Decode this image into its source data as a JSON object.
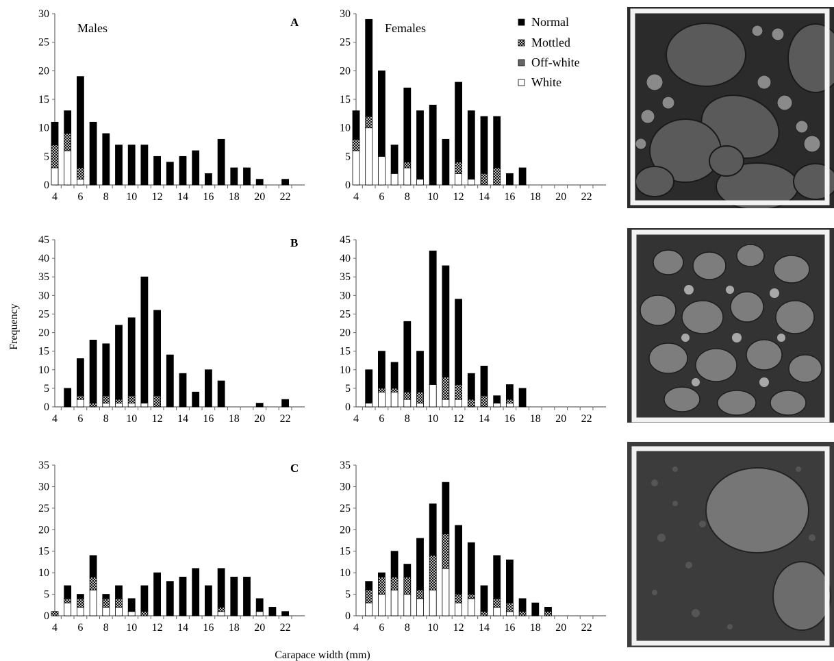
{
  "figure": {
    "ylabel": "Frequency",
    "xlabel": "Carapace width (mm)"
  },
  "legend": [
    {
      "key": "normal",
      "label": "Normal",
      "fill": "#000000"
    },
    {
      "key": "mottled",
      "label": "Mottled",
      "fill": "pattern-mottled"
    },
    {
      "key": "offwhite",
      "label": "Off-white",
      "fill": "#666666"
    },
    {
      "key": "white",
      "label": "White",
      "fill": "#ffffff"
    }
  ],
  "colors": {
    "normal": "#000000",
    "offwhite": "#666666",
    "white": "#ffffff",
    "axis": "#666666"
  },
  "chart_data": [
    {
      "type": "bar",
      "stacked": true,
      "row": "A",
      "column": "Males",
      "panel_letter": "A",
      "panel_label": "Males",
      "x": [
        4,
        5,
        6,
        7,
        8,
        9,
        10,
        11,
        12,
        13,
        14,
        15,
        16,
        17,
        18,
        19,
        20,
        21,
        22
      ],
      "xticks": [
        4,
        6,
        8,
        10,
        12,
        14,
        16,
        18,
        20,
        22
      ],
      "ylim": [
        0,
        30
      ],
      "yticks": [
        0,
        5,
        10,
        15,
        20,
        25,
        30
      ],
      "series": [
        {
          "name": "White",
          "values": [
            3,
            6,
            1,
            0,
            0,
            0,
            0,
            0,
            0,
            0,
            0,
            0,
            0,
            0,
            0,
            0,
            0,
            0,
            0
          ]
        },
        {
          "name": "Off-white",
          "values": [
            0,
            0,
            0,
            0,
            0,
            0,
            0,
            0,
            0,
            0,
            0,
            0,
            0,
            0,
            0,
            0,
            0,
            0,
            0
          ]
        },
        {
          "name": "Mottled",
          "values": [
            4,
            3,
            2,
            0,
            0,
            0,
            0,
            0,
            0,
            0,
            0,
            0,
            0,
            0,
            0,
            0,
            0,
            0,
            0
          ]
        },
        {
          "name": "Normal",
          "values": [
            4,
            4,
            16,
            11,
            9,
            7,
            7,
            7,
            5,
            4,
            5,
            6,
            2,
            8,
            3,
            3,
            1,
            0,
            1
          ]
        }
      ]
    },
    {
      "type": "bar",
      "stacked": true,
      "row": "A",
      "column": "Females",
      "panel_label": "Females",
      "x": [
        4,
        5,
        6,
        7,
        8,
        9,
        10,
        11,
        12,
        13,
        14,
        15,
        16,
        17,
        18,
        19,
        20,
        21,
        22
      ],
      "xticks": [
        4,
        6,
        8,
        10,
        12,
        14,
        16,
        18,
        20,
        22
      ],
      "ylim": [
        0,
        30
      ],
      "yticks": [
        0,
        5,
        10,
        15,
        20,
        25,
        30
      ],
      "series": [
        {
          "name": "White",
          "values": [
            6,
            10,
            5,
            2,
            3,
            1,
            0,
            0,
            2,
            1,
            0,
            0,
            0,
            0,
            0,
            0,
            0,
            0,
            0
          ]
        },
        {
          "name": "Off-white",
          "values": [
            0,
            0,
            0,
            0,
            0,
            0,
            0,
            0,
            0,
            0,
            0,
            0,
            0,
            0,
            0,
            0,
            0,
            0,
            0
          ]
        },
        {
          "name": "Mottled",
          "values": [
            2,
            2,
            0,
            0,
            1,
            0,
            0,
            0,
            2,
            0,
            2,
            3,
            0,
            0,
            0,
            0,
            0,
            0,
            0
          ]
        },
        {
          "name": "Normal",
          "values": [
            5,
            17,
            15,
            5,
            13,
            12,
            14,
            8,
            14,
            12,
            10,
            9,
            2,
            3,
            0,
            0,
            0,
            0,
            0
          ]
        }
      ]
    },
    {
      "type": "bar",
      "stacked": true,
      "row": "B",
      "column": "Males",
      "panel_letter": "B",
      "x": [
        4,
        5,
        6,
        7,
        8,
        9,
        10,
        11,
        12,
        13,
        14,
        15,
        16,
        17,
        18,
        19,
        20,
        21,
        22
      ],
      "xticks": [
        4,
        6,
        8,
        10,
        12,
        14,
        16,
        18,
        20,
        22
      ],
      "ylim": [
        0,
        45
      ],
      "yticks": [
        0,
        5,
        10,
        15,
        20,
        25,
        30,
        35,
        40,
        45
      ],
      "series": [
        {
          "name": "White",
          "values": [
            0,
            0,
            2,
            0,
            1,
            1,
            1,
            1,
            0,
            0,
            0,
            0,
            0,
            0,
            0,
            0,
            0,
            0,
            0
          ]
        },
        {
          "name": "Off-white",
          "values": [
            0,
            0,
            0,
            0,
            0,
            0,
            0,
            0,
            0,
            0,
            0,
            0,
            0,
            0,
            0,
            0,
            0,
            0,
            0
          ]
        },
        {
          "name": "Mottled",
          "values": [
            0,
            0,
            1,
            1,
            2,
            1,
            2,
            0,
            3,
            0,
            0,
            0,
            0,
            0,
            0,
            0,
            0,
            0,
            0
          ]
        },
        {
          "name": "Normal",
          "values": [
            0,
            5,
            10,
            17,
            14,
            20,
            21,
            34,
            23,
            14,
            9,
            4,
            10,
            7,
            0,
            0,
            1,
            0,
            2
          ]
        }
      ]
    },
    {
      "type": "bar",
      "stacked": true,
      "row": "B",
      "column": "Females",
      "x": [
        4,
        5,
        6,
        7,
        8,
        9,
        10,
        11,
        12,
        13,
        14,
        15,
        16,
        17,
        18,
        19,
        20,
        21,
        22
      ],
      "xticks": [
        4,
        6,
        8,
        10,
        12,
        14,
        16,
        18,
        20,
        22
      ],
      "ylim": [
        0,
        45
      ],
      "yticks": [
        0,
        5,
        10,
        15,
        20,
        25,
        30,
        35,
        40,
        45
      ],
      "series": [
        {
          "name": "White",
          "values": [
            0,
            1,
            4,
            4,
            2,
            1,
            6,
            2,
            2,
            0,
            0,
            1,
            1,
            0,
            0,
            0,
            0,
            0,
            0
          ]
        },
        {
          "name": "Off-white",
          "values": [
            0,
            0,
            0,
            0,
            0,
            0,
            0,
            0,
            0,
            0,
            0,
            0,
            0,
            0,
            0,
            0,
            0,
            0,
            0
          ]
        },
        {
          "name": "Mottled",
          "values": [
            0,
            0,
            1,
            1,
            2,
            3,
            0,
            6,
            4,
            2,
            3,
            0,
            1,
            0,
            0,
            0,
            0,
            0,
            0
          ]
        },
        {
          "name": "Normal",
          "values": [
            0,
            9,
            10,
            7,
            19,
            11,
            36,
            30,
            23,
            7,
            8,
            2,
            4,
            5,
            0,
            0,
            0,
            0,
            0
          ]
        }
      ]
    },
    {
      "type": "bar",
      "stacked": true,
      "row": "C",
      "column": "Males",
      "panel_letter": "C",
      "x": [
        4,
        5,
        6,
        7,
        8,
        9,
        10,
        11,
        12,
        13,
        14,
        15,
        16,
        17,
        18,
        19,
        20,
        21,
        22
      ],
      "xticks": [
        4,
        6,
        8,
        10,
        12,
        14,
        16,
        18,
        20,
        22
      ],
      "ylim": [
        0,
        35
      ],
      "yticks": [
        0,
        5,
        10,
        15,
        20,
        25,
        30,
        35
      ],
      "series": [
        {
          "name": "White",
          "values": [
            0,
            3,
            2,
            6,
            2,
            2,
            1,
            0,
            0,
            0,
            0,
            0,
            0,
            1,
            0,
            0,
            1,
            0,
            0
          ]
        },
        {
          "name": "Off-white",
          "values": [
            0,
            0,
            0,
            0,
            0,
            0,
            0,
            0,
            0,
            0,
            0,
            0,
            0,
            0,
            0,
            0,
            0,
            0,
            0
          ]
        },
        {
          "name": "Mottled",
          "values": [
            1,
            1,
            2,
            3,
            2,
            2,
            0,
            1,
            0,
            0,
            0,
            0,
            0,
            1,
            0,
            0,
            0,
            0,
            0
          ]
        },
        {
          "name": "Normal",
          "values": [
            0,
            3,
            1,
            5,
            1,
            3,
            3,
            6,
            10,
            8,
            9,
            11,
            7,
            9,
            9,
            9,
            3,
            2,
            1
          ]
        }
      ]
    },
    {
      "type": "bar",
      "stacked": true,
      "row": "C",
      "column": "Females",
      "x": [
        4,
        5,
        6,
        7,
        8,
        9,
        10,
        11,
        12,
        13,
        14,
        15,
        16,
        17,
        18,
        19,
        20,
        21,
        22
      ],
      "xticks": [
        4,
        6,
        8,
        10,
        12,
        14,
        16,
        18,
        20,
        22
      ],
      "ylim": [
        0,
        35
      ],
      "yticks": [
        0,
        5,
        10,
        15,
        20,
        25,
        30,
        35
      ],
      "series": [
        {
          "name": "White",
          "values": [
            0,
            3,
            5,
            6,
            5,
            4,
            6,
            11,
            3,
            4,
            0,
            2,
            1,
            0,
            0,
            0,
            0,
            0,
            0
          ]
        },
        {
          "name": "Off-white",
          "values": [
            0,
            0,
            0,
            0,
            0,
            0,
            0,
            0,
            0,
            0,
            0,
            0,
            0,
            0,
            0,
            0,
            0,
            0,
            0
          ]
        },
        {
          "name": "Mottled",
          "values": [
            0,
            3,
            4,
            3,
            4,
            2,
            8,
            8,
            2,
            1,
            1,
            2,
            2,
            1,
            0,
            1,
            0,
            0,
            0
          ]
        },
        {
          "name": "Normal",
          "values": [
            0,
            2,
            1,
            6,
            3,
            12,
            12,
            12,
            16,
            12,
            6,
            10,
            10,
            3,
            3,
            1,
            0,
            0,
            0
          ]
        }
      ]
    }
  ],
  "photos": [
    {
      "name": "habitat-photo-a"
    },
    {
      "name": "habitat-photo-b"
    },
    {
      "name": "habitat-photo-c"
    }
  ]
}
